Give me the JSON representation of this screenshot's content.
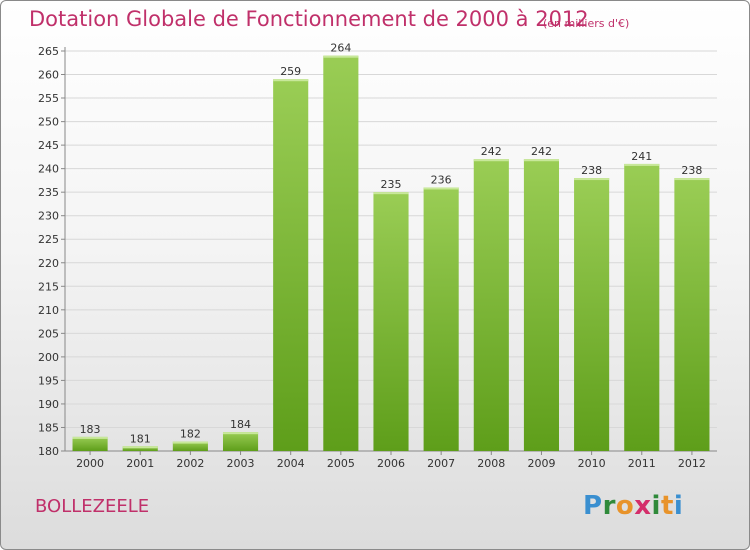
{
  "title": "Dotation Globale de Fonctionnement de 2000 à 2012",
  "unit_note": "(en milliers d'€)",
  "commune": "BOLLEZEELE",
  "logo": {
    "letters": [
      "P",
      "r",
      "o",
      "x",
      "i",
      "t",
      "i"
    ],
    "colors": [
      "#3a8fd0",
      "#2f8a3a",
      "#e8932a",
      "#d42e6a",
      "#2f8a3a",
      "#e8932a",
      "#3a8fd0"
    ]
  },
  "colors": {
    "title": "#c0306a",
    "bar_top": "#9acd55",
    "bar_bottom": "#5e9e1a"
  },
  "chart_data": {
    "type": "bar",
    "title": "Dotation Globale de Fonctionnement de 2000 à 2012",
    "categories": [
      "2000",
      "2001",
      "2002",
      "2003",
      "2004",
      "2005",
      "2006",
      "2007",
      "2008",
      "2009",
      "2010",
      "2011",
      "2012"
    ],
    "values": [
      183,
      181,
      182,
      184,
      259,
      264,
      235,
      236,
      242,
      242,
      238,
      241,
      238
    ],
    "ylim": [
      180,
      265
    ],
    "yticks": [
      180,
      185,
      190,
      195,
      200,
      205,
      210,
      215,
      220,
      225,
      230,
      235,
      240,
      245,
      250,
      255,
      260,
      265
    ],
    "grid": "horizontal",
    "data_labels": true
  }
}
